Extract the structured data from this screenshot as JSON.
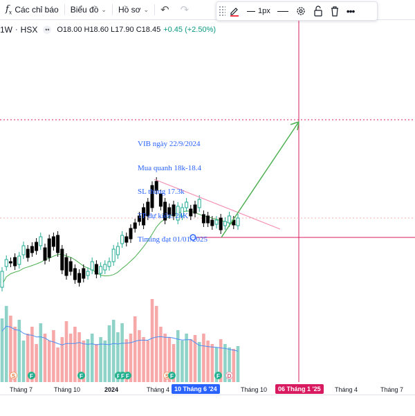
{
  "toolbar": {
    "indicators_label": "Các chỉ báo",
    "chart_type_label": "Biểu đồ",
    "profile_label": "Hồ sơ"
  },
  "drawing_toolbar": {
    "line_width_label": "1px",
    "line_color": "#f23645"
  },
  "legend": {
    "interval": "1W",
    "exchange": "HSX",
    "ohlc": "O18.00 H18.60 L17.90 C18.45",
    "change": "+0.45 (+2.50%)"
  },
  "annotation": {
    "lines": [
      "VIB ngày 22/9/2024",
      "Mua quanh 18k-18.4",
      "SL thủng 17.3k",
      "TP dự kiến: 24K",
      "Timing đạt 01/01/2025"
    ],
    "color": "#2962ff"
  },
  "x_axis": {
    "labels": [
      "Tháng 7",
      "Tháng 10",
      "2024",
      "Tháng 4",
      "Tháng 10",
      "Tháng 4",
      "Tháng 7"
    ],
    "highlight_left": "10 Tháng 6 '24",
    "highlight_right": "06 Tháng 1 '25",
    "highlight_left_color": "#2962ff",
    "highlight_right_color": "#d81b60"
  },
  "events": {
    "s": "S",
    "f": "F",
    "d": "D"
  },
  "colors": {
    "up": "#22ab94",
    "down": "#000000",
    "vol_up": "#8fd3c8",
    "vol_down": "#f7a9a9",
    "ma": "#4caf50",
    "vol_ma": "#4c8ef5",
    "trendline": "#f48fb1",
    "arrow": "#4caf50",
    "crosshair": "#d81b60"
  }
}
